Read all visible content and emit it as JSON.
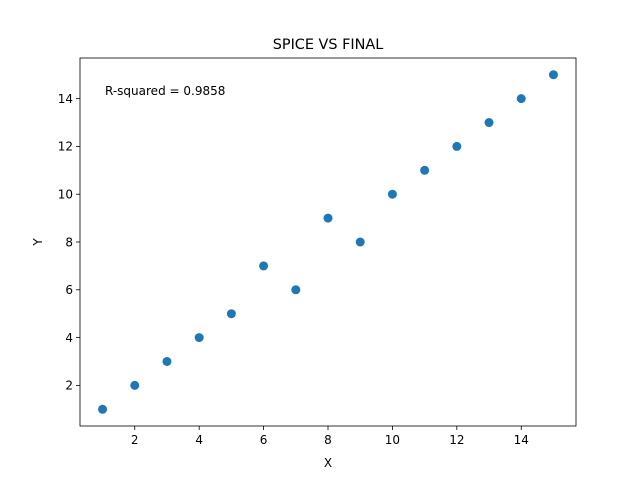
{
  "chart_data": {
    "type": "scatter",
    "title": "SPICE VS FINAL",
    "xlabel": "X",
    "ylabel": "Y",
    "annotation": "R-squared = 0.9858",
    "xlim": [
      0.3,
      15.7
    ],
    "ylim": [
      0.3,
      15.7
    ],
    "x_ticks": [
      2,
      4,
      6,
      8,
      10,
      12,
      14
    ],
    "y_ticks": [
      2,
      4,
      6,
      8,
      10,
      12,
      14
    ],
    "grid": false,
    "color": "#1f77b4",
    "points": [
      {
        "x": 1,
        "y": 1
      },
      {
        "x": 2,
        "y": 2
      },
      {
        "x": 3,
        "y": 3
      },
      {
        "x": 4,
        "y": 4
      },
      {
        "x": 5,
        "y": 5
      },
      {
        "x": 6,
        "y": 7
      },
      {
        "x": 7,
        "y": 6
      },
      {
        "x": 8,
        "y": 9
      },
      {
        "x": 9,
        "y": 8
      },
      {
        "x": 10,
        "y": 10
      },
      {
        "x": 11,
        "y": 11
      },
      {
        "x": 12,
        "y": 12
      },
      {
        "x": 13,
        "y": 13
      },
      {
        "x": 14,
        "y": 14
      },
      {
        "x": 15,
        "y": 15
      }
    ]
  }
}
